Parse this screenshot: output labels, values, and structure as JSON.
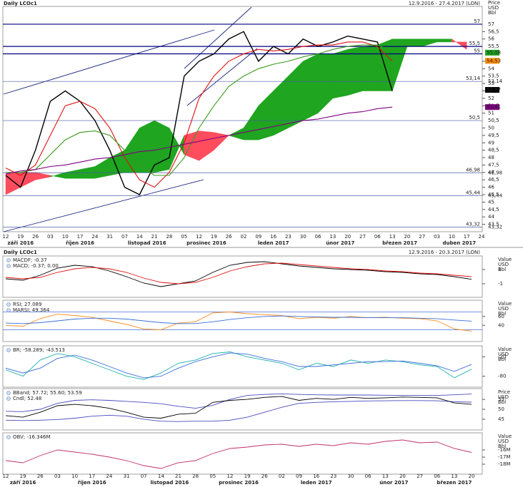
{
  "chart_data": [
    {
      "type": "ichimoku",
      "title": "Daily LCOc1",
      "date_range": "12.9.2016 - 27.4.2017 (LON)",
      "y_axis_label": [
        "Price",
        "USD",
        "Bbl"
      ],
      "categories": [
        "12",
        "19",
        "26",
        "03",
        "10",
        "17",
        "24",
        "31",
        "07",
        "14",
        "21",
        "28",
        "05",
        "12",
        "19",
        "26",
        "02",
        "09",
        "16",
        "23",
        "30",
        "06",
        "13",
        "20",
        "27",
        "06",
        "13",
        "20",
        "27",
        "03",
        "10",
        "17",
        "24"
      ],
      "months": [
        "září 2016",
        "říjen 2016",
        "listopad 2016",
        "prosinec 2016",
        "leden 2017",
        "únor 2017",
        "březen 2017",
        "duben 2017"
      ],
      "series": [
        {
          "color": "#000000",
          "values": [
            46.8,
            46.0,
            48.5,
            51.8,
            52.5,
            51.8,
            50.5,
            48.5,
            46.0,
            45.5,
            47.5,
            48.0,
            53.5,
            54.5,
            55.0,
            56.0,
            56.5,
            54.5,
            55.5,
            55.0,
            56.0,
            55.5,
            55.8,
            56.2,
            56.0,
            55.8,
            52.5,
            null,
            null,
            null,
            null,
            null,
            null
          ]
        },
        {
          "color": "#e01010",
          "values": [
            47.3,
            46.8,
            47.5,
            49.5,
            51.5,
            51.8,
            51.3,
            50.0,
            48.0,
            46.5,
            46.0,
            47.0,
            49.0,
            52.0,
            53.5,
            54.5,
            55.0,
            55.3,
            55.2,
            55.3,
            55.5,
            55.6,
            55.6,
            55.8,
            55.8,
            55.5,
            54.5,
            null,
            null,
            null,
            null,
            null,
            null
          ]
        },
        {
          "color": "#3a9a1a",
          "values": [
            47.0,
            47.0,
            47.2,
            48.2,
            49.2,
            49.7,
            49.8,
            49.5,
            48.5,
            47.5,
            46.8,
            46.8,
            48.0,
            50.0,
            51.5,
            52.8,
            53.5,
            54.0,
            54.3,
            54.5,
            54.8,
            55.0,
            55.3,
            55.5,
            55.6,
            55.6,
            55.2,
            null,
            null,
            null,
            null,
            null,
            null
          ]
        },
        {
          "color": "#800080",
          "values": [
            46.9,
            47.1,
            47.2,
            47.4,
            47.5,
            47.7,
            47.9,
            48.0,
            48.2,
            48.4,
            48.5,
            48.7,
            48.9,
            49.1,
            49.3,
            49.5,
            49.7,
            49.9,
            50.1,
            50.3,
            50.5,
            50.6,
            50.8,
            51.0,
            51.1,
            51.3,
            51.41,
            null,
            null,
            null,
            null,
            null,
            null
          ]
        }
      ],
      "senkou_a": [
        45.5,
        46.0,
        46.5,
        46.7,
        47.0,
        47.2,
        47.4,
        48.0,
        48.5,
        50.0,
        50.5,
        50.0,
        48.2,
        47.8,
        48.5,
        49.5,
        50.0,
        51.5,
        52.5,
        53.5,
        54.5,
        55.0,
        55.0,
        55.3,
        55.5,
        55.6,
        56.0,
        56.0,
        56.0,
        56.0,
        56.0,
        55.3,
        null
      ],
      "senkou_b": [
        46.9,
        47.0,
        47.0,
        46.8,
        46.6,
        46.6,
        46.6,
        46.8,
        47.0,
        47.0,
        47.0,
        47.2,
        49.5,
        49.8,
        49.7,
        49.5,
        49.2,
        49.2,
        49.5,
        50.0,
        50.5,
        51.0,
        52.0,
        52.2,
        52.5,
        52.5,
        52.5,
        55.5,
        55.5,
        55.8,
        55.8,
        55.8,
        null
      ],
      "cloud_colors": {
        "up": "#1fa51f",
        "down": "#ff4d5e"
      },
      "ylim": [
        43,
        58.2
      ],
      "yticks": [
        {
          "value": 43.5,
          "label": "43,5"
        },
        44,
        {
          "value": 44.5,
          "label": "44,5"
        },
        45,
        {
          "value": 45.5,
          "label": "45,5"
        },
        46,
        {
          "value": 46.5,
          "label": "46,5"
        },
        47,
        {
          "value": 47.5,
          "label": "47,5"
        },
        48,
        {
          "value": 48.5,
          "label": "48,5"
        },
        49,
        {
          "value": 49.5,
          "label": "49,5"
        },
        50,
        51,
        {
          "value": 51.5,
          "label": "51,5"
        },
        52,
        {
          "value": 52.5,
          "label": "52,5"
        },
        53,
        {
          "value": 53.5,
          "label": "53,5"
        },
        54,
        {
          "value": 54.5,
          "label": "54,5"
        },
        56,
        {
          "value": 56.5,
          "label": "56,5"
        }
      ],
      "levels": [
        {
          "value": 57,
          "label": "57",
          "color": "#000080"
        },
        {
          "value": 55.5,
          "label": "55,5",
          "color": "#000080"
        },
        {
          "value": 55,
          "label": "55",
          "color": "#000080"
        },
        {
          "value": 53.14,
          "label": "53,14",
          "color": "#4a5aa8"
        },
        {
          "value": 50.5,
          "label": "50,5",
          "color": "#4a5aa8"
        },
        {
          "value": 46.98,
          "label": "46,98",
          "color": "#4a5aa8"
        },
        {
          "value": 45.44,
          "label": "45,44",
          "color": "#4a5aa8"
        },
        {
          "value": 43.32,
          "label": "43,32",
          "color": "#4a5aa8"
        }
      ],
      "price_tags": [
        {
          "value": 55.08,
          "label": "55,08",
          "color": "#1fa51f"
        },
        {
          "value": 54.53,
          "label": "54,53",
          "color": "#ff8c00"
        },
        {
          "value": 52.57,
          "label": "52,57",
          "color": "#000000"
        },
        {
          "value": 51.41,
          "label": "51,41",
          "color": "#800080"
        }
      ]
    },
    {
      "type": "panels",
      "title": "Daily LCOc1",
      "date_range": "12.9.2016 - 20.3.2017 (LON)",
      "categories": [
        "12",
        "19",
        "26",
        "03",
        "10",
        "17",
        "24",
        "31",
        "07",
        "14",
        "21",
        "28",
        "05",
        "12",
        "19",
        "26",
        "02",
        "09",
        "16",
        "23",
        "30",
        "06",
        "13",
        "20",
        "27",
        "06",
        "13",
        "20"
      ],
      "months": [
        "září 2016",
        "říjen 2016",
        "listopad 2016",
        "prosinec 2016",
        "leden 2017",
        "únor 2017",
        "březen 2017"
      ],
      "panels": [
        {
          "type": "line",
          "y_axis_label": [
            "Value",
            "USD",
            "Bbl"
          ],
          "ylim": [
            -2.5,
            2.5
          ],
          "yticks": [
            -1,
            1
          ],
          "series": [
            {
              "name": "MACDF; -0.37",
              "color": "#000000",
              "values": [
                -0.3,
                -0.5,
                0.2,
                1.2,
                1.6,
                1.4,
                0.8,
                0.0,
                -0.9,
                -1.4,
                -1.0,
                -0.6,
                0.6,
                1.6,
                2.0,
                2.1,
                1.8,
                1.5,
                1.3,
                1.1,
                1.0,
                0.9,
                0.7,
                0.6,
                0.4,
                0.3,
                0.0,
                -0.37
              ]
            },
            {
              "name": "MACD; -0.37; 0.00",
              "color": "#e01010",
              "values": [
                -0.1,
                -0.3,
                -0.1,
                0.6,
                1.1,
                1.3,
                1.1,
                0.6,
                -0.2,
                -0.8,
                -1.0,
                -0.8,
                -0.1,
                0.8,
                1.4,
                1.8,
                1.9,
                1.7,
                1.5,
                1.3,
                1.1,
                1.0,
                0.8,
                0.7,
                0.5,
                0.4,
                0.2,
                0.0
              ]
            }
          ]
        },
        {
          "type": "line",
          "y_axis_label": [
            "Value",
            "USD",
            "Bbl"
          ],
          "ylim": [
            10,
            90
          ],
          "yticks": [
            40,
            60
          ],
          "levels": [
            70,
            30
          ],
          "series": [
            {
              "name": "RSI; 27.089",
              "color": "#ff8c1a",
              "values": [
                40,
                38,
                55,
                65,
                62,
                58,
                50,
                42,
                32,
                30,
                45,
                48,
                68,
                70,
                66,
                64,
                62,
                55,
                58,
                56,
                60,
                57,
                58,
                56,
                55,
                50,
                32,
                27.089
              ]
            },
            {
              "name": "MARSI; 49.364",
              "color": "#3a6fd8",
              "values": [
                45,
                44,
                46,
                50,
                54,
                56,
                56,
                54,
                50,
                46,
                44,
                44,
                48,
                53,
                57,
                60,
                61,
                60,
                59,
                58,
                58,
                57,
                57,
                57,
                56,
                55,
                52,
                49.364
              ]
            }
          ]
        },
        {
          "type": "line",
          "y_axis_label": [
            "Value",
            "USD",
            "Bbl"
          ],
          "ylim": [
            -105,
            5
          ],
          "yticks": [
            -80,
            -20
          ],
          "series": [
            {
              "name": "BR; -58.289; -43.513",
              "color": "#20b0b0",
              "values": [
                -60,
                -80,
                -30,
                -10,
                -20,
                -40,
                -60,
                -80,
                -90,
                -70,
                -40,
                -30,
                -10,
                -5,
                -20,
                -30,
                -40,
                -60,
                -40,
                -50,
                -30,
                -40,
                -30,
                -35,
                -45,
                -50,
                -85,
                -58.289
              ]
            },
            {
              "color": "#3a6fd8",
              "values": [
                -55,
                -70,
                -55,
                -25,
                -15,
                -30,
                -50,
                -70,
                -85,
                -80,
                -55,
                -35,
                -20,
                -8,
                -12,
                -25,
                -35,
                -50,
                -50,
                -45,
                -40,
                -35,
                -35,
                -33,
                -40,
                -48,
                -65,
                -43.513
              ]
            }
          ]
        },
        {
          "type": "line",
          "y_axis_label": [
            "Price",
            "USD",
            "Bbl"
          ],
          "ylim": [
            41,
            59
          ],
          "yticks": [
            45,
            50,
            55
          ],
          "series": [
            {
              "name": "BBand; 57.72; 55.60; 53.59",
              "color": "#4a4ac0",
              "values": [
                49,
                48.8,
                50,
                53,
                54.5,
                54.8,
                54.5,
                54,
                53.5,
                52.8,
                51.5,
                50.5,
                52,
                55,
                57,
                57.5,
                57.8,
                57.5,
                57.3,
                57.2,
                57.2,
                57.2,
                57.1,
                57.0,
                57.0,
                57.0,
                57.3,
                57.72
              ]
            },
            {
              "color": "#4a4ac0",
              "values": [
                44.5,
                44.3,
                44.5,
                44.8,
                45.5,
                46.5,
                47,
                46.5,
                45,
                44,
                43.8,
                44,
                44,
                44.5,
                46,
                48.5,
                51,
                53,
                53.5,
                53.8,
                54,
                54.2,
                54.3,
                54.4,
                54.4,
                54.3,
                53.8,
                53.59
              ]
            },
            {
              "name": "Cndl; 52.48",
              "color": "#000000",
              "values": [
                46.8,
                46,
                48.5,
                51.8,
                52.5,
                51.8,
                50.5,
                48.5,
                46,
                45.5,
                47.5,
                48,
                53.5,
                54.5,
                55,
                56,
                56.5,
                54.5,
                55.5,
                55,
                56,
                55.5,
                55.8,
                56.2,
                56,
                55.8,
                53.2,
                52.48
              ]
            }
          ]
        },
        {
          "type": "line",
          "y_axis_label": [
            "Value",
            "USD",
            "Bbl"
          ],
          "ylim": [
            -19000000,
            -14000000
          ],
          "yticks": [
            {
              "value": -18000000,
              "label": "-18M"
            },
            {
              "value": -17000000,
              "label": "-17M"
            },
            {
              "value": -16000000,
              "label": "-16M"
            }
          ],
          "series": [
            {
              "name": "OBV; -16.346M",
              "color": "#c0306a",
              "values": [
                -17500000,
                -17800000,
                -16800000,
                -16000000,
                -16300000,
                -16600000,
                -17000000,
                -17500000,
                -18200000,
                -18600000,
                -17800000,
                -17500000,
                -16500000,
                -15800000,
                -15600000,
                -15300000,
                -15200000,
                -15500000,
                -15200000,
                -15400000,
                -15000000,
                -15200000,
                -14800000,
                -14600000,
                -15000000,
                -14900000,
                -15800000,
                -16346000
              ]
            }
          ]
        }
      ]
    }
  ]
}
